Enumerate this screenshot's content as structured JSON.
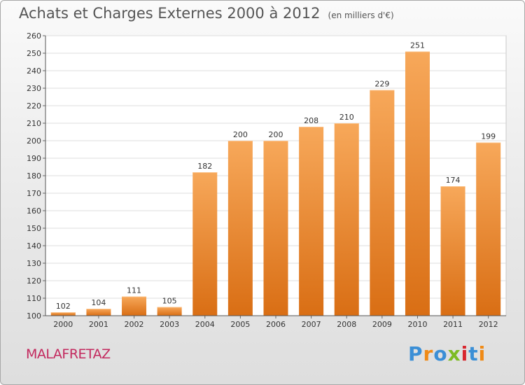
{
  "title": "Achats et Charges Externes 2000 à 2012",
  "unit": "(en milliers d'€)",
  "commune": "MALAFRETAZ",
  "brand": {
    "text": "Proxiti",
    "colors": [
      "#3b8fd6",
      "#f08a16",
      "#3b8fd6",
      "#7dbb22",
      "#d8262e",
      "#3b8fd6",
      "#f08a16"
    ]
  },
  "bar_colors": {
    "top": "#f7a85a",
    "bottom": "#d96e14"
  },
  "chart_data": {
    "type": "bar",
    "categories": [
      "2000",
      "2001",
      "2002",
      "2003",
      "2004",
      "2005",
      "2006",
      "2007",
      "2008",
      "2009",
      "2010",
      "2011",
      "2012"
    ],
    "values": [
      102,
      104,
      111,
      105,
      182,
      200,
      200,
      208,
      210,
      229,
      251,
      174,
      199
    ],
    "ylim": [
      100,
      260
    ],
    "yticks": [
      100,
      110,
      120,
      130,
      140,
      150,
      160,
      170,
      180,
      190,
      200,
      210,
      220,
      230,
      240,
      250,
      260
    ],
    "grid": true,
    "title": "Achats et Charges Externes 2000 à 2012",
    "xlabel": "",
    "ylabel": ""
  }
}
